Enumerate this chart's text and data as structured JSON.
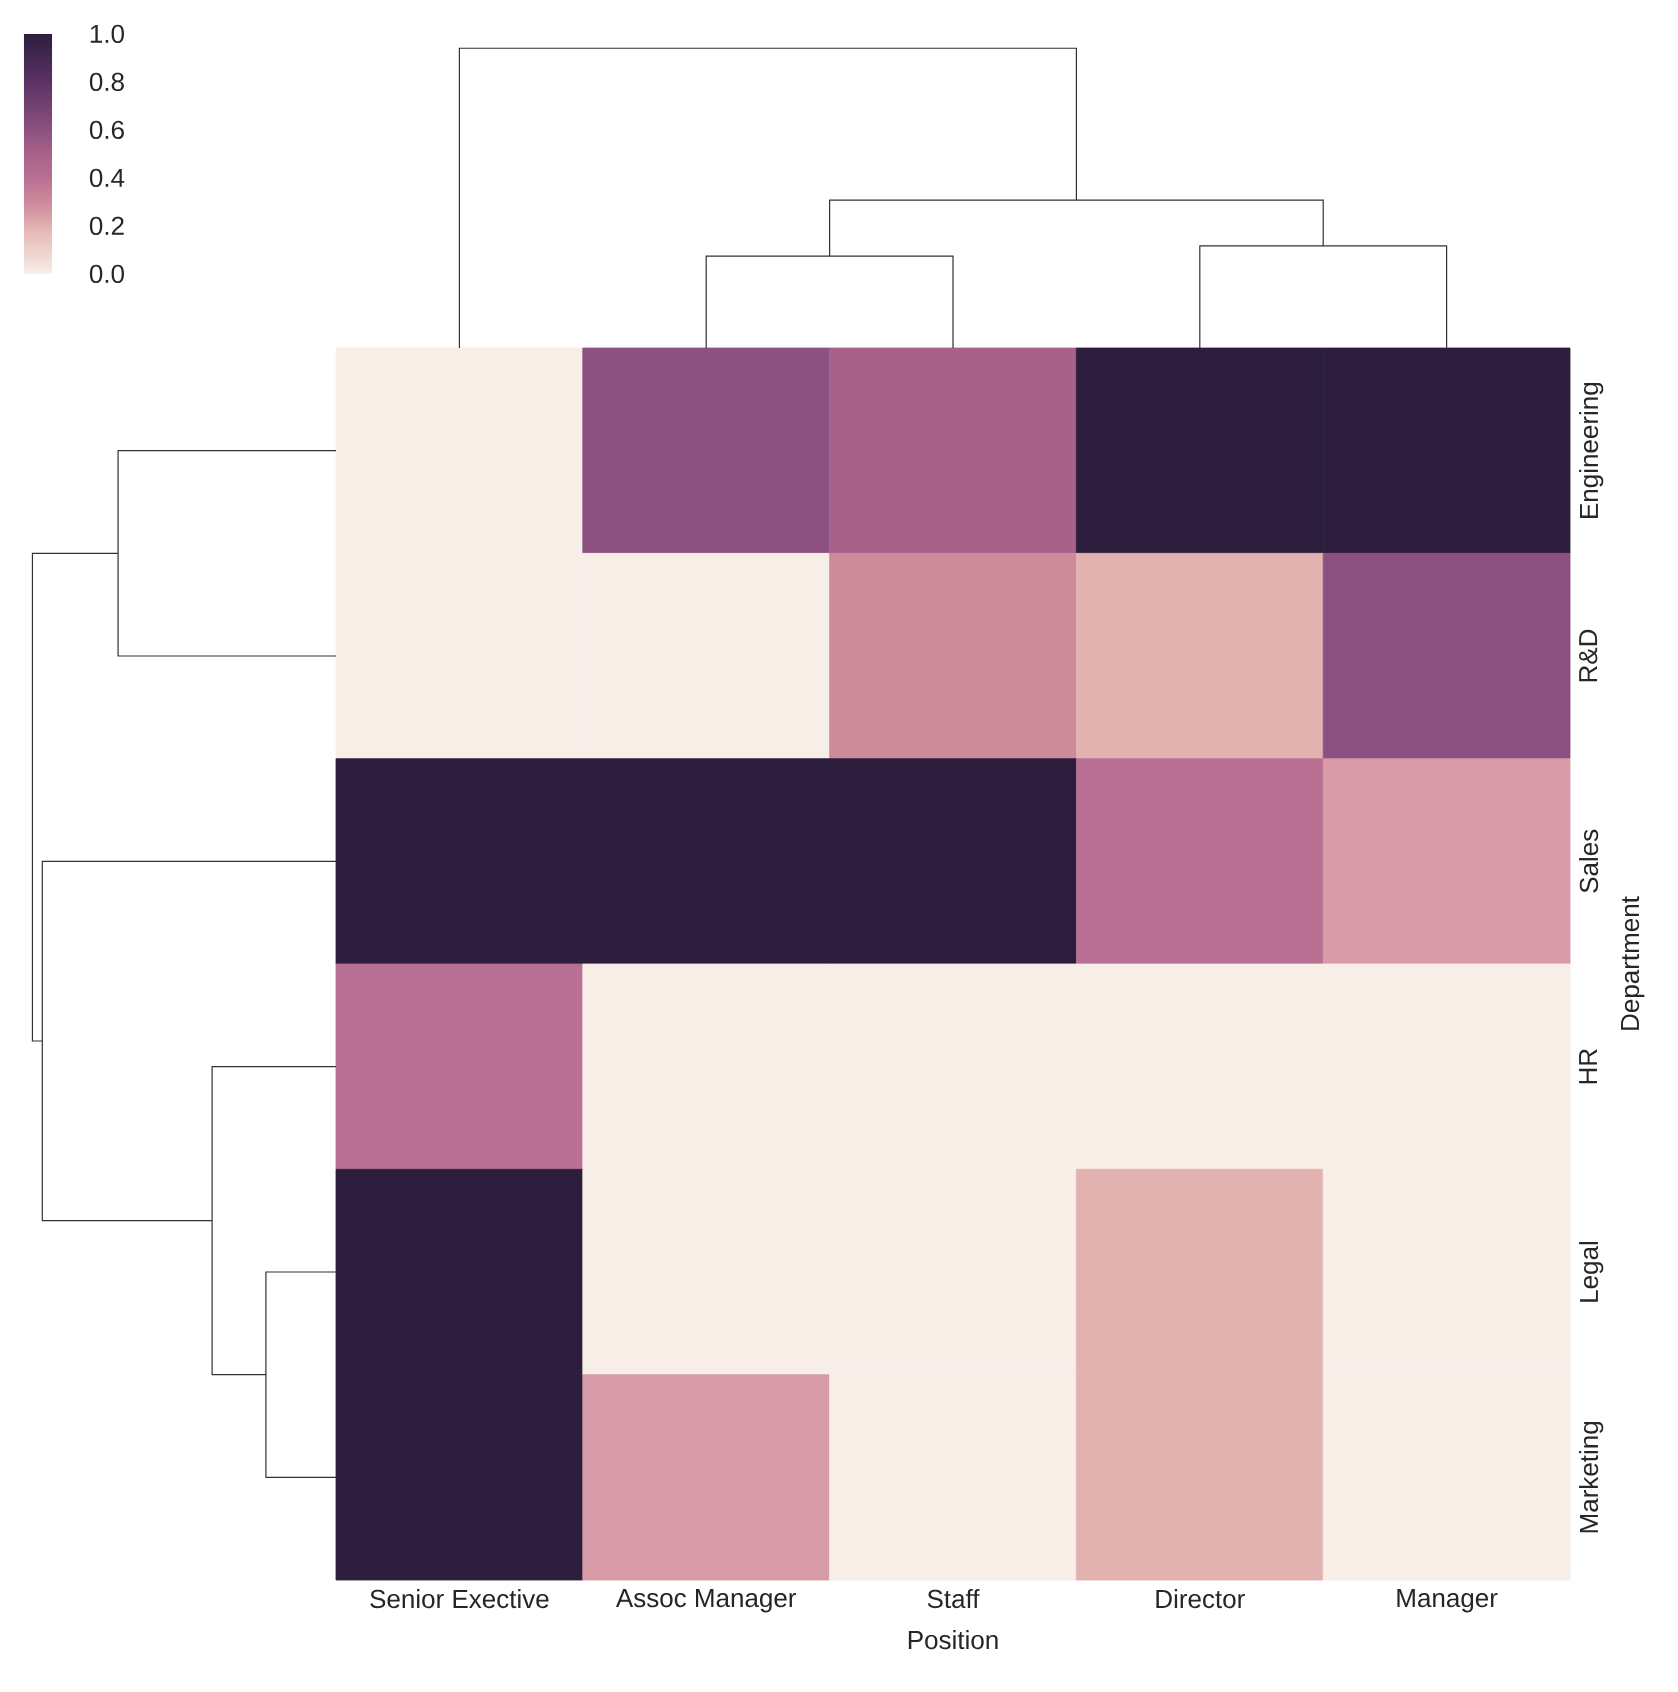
{
  "chart_data": {
    "type": "heatmap",
    "xlabel": "Position",
    "ylabel": "Department",
    "categories": [
      "Senior Exective",
      "Assoc Manager",
      "Staff",
      "Director",
      "Manager"
    ],
    "y_categories": [
      "Engineering",
      "R&D",
      "Sales",
      "HR",
      "Legal",
      "Marketing"
    ],
    "cells": [
      [
        0,
        0.6,
        0.5,
        1,
        1
      ],
      [
        0,
        0,
        0.3,
        0.2,
        0.6
      ],
      [
        1,
        1,
        1,
        0.4,
        0.25
      ],
      [
        0.4,
        0,
        0,
        0,
        0
      ],
      [
        1,
        0,
        0,
        0.2,
        0
      ],
      [
        1,
        0.25,
        0,
        0.2,
        0
      ]
    ],
    "clim": [
      0,
      1
    ],
    "cticks": [
      {
        "value": 0,
        "label": "0.0"
      },
      {
        "value": 0.2,
        "label": "0.2"
      },
      {
        "value": 0.4,
        "label": "0.4"
      },
      {
        "value": 0.6,
        "label": "0.6"
      },
      {
        "value": 0.8,
        "label": "0.8"
      },
      {
        "value": 1,
        "label": "1.0"
      }
    ]
  }
}
